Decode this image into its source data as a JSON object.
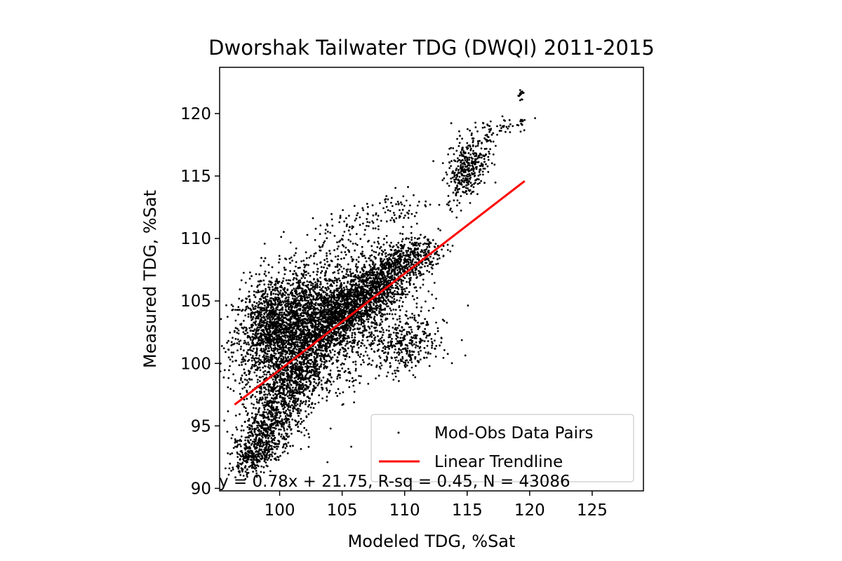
{
  "chart_data": {
    "type": "scatter",
    "title": "Dworshak Tailwater TDG (DWQI) 2011-2015",
    "xlabel": "Modeled TDG, %Sat",
    "ylabel": "Measured TDG, %Sat",
    "xlim": [
      95.2,
      129.1
    ],
    "ylim": [
      89.8,
      123.7
    ],
    "xticks": [
      100,
      105,
      110,
      115,
      120,
      125
    ],
    "yticks": [
      90,
      95,
      100,
      105,
      110,
      115,
      120
    ],
    "grid": false,
    "legend_position": "lower-right",
    "series": [
      {
        "name": "Mod-Obs Data Pairs",
        "kind": "scatter",
        "color": "#000000",
        "clusters": [
          {
            "cx": 99.5,
            "cy": 103.0,
            "sx": 1.6,
            "sy": 2.2,
            "rho": 0.3,
            "n": 1400
          },
          {
            "cx": 102.5,
            "cy": 103.5,
            "sx": 2.0,
            "sy": 2.0,
            "rho": 0.4,
            "n": 1200
          },
          {
            "cx": 101.0,
            "cy": 98.5,
            "sx": 1.6,
            "sy": 2.0,
            "rho": 0.6,
            "n": 900
          },
          {
            "cx": 99.0,
            "cy": 94.5,
            "sx": 1.3,
            "sy": 1.4,
            "rho": 0.6,
            "n": 500
          },
          {
            "cx": 97.8,
            "cy": 92.3,
            "sx": 0.9,
            "sy": 0.6,
            "rho": 0.5,
            "n": 200
          },
          {
            "cx": 105.5,
            "cy": 104.0,
            "sx": 2.0,
            "sy": 1.8,
            "rho": 0.6,
            "n": 1000
          },
          {
            "cx": 107.5,
            "cy": 106.0,
            "sx": 1.8,
            "sy": 1.3,
            "rho": 0.5,
            "n": 800
          },
          {
            "cx": 110.0,
            "cy": 108.5,
            "sx": 1.4,
            "sy": 0.8,
            "rho": 0.3,
            "n": 400
          },
          {
            "cx": 110.0,
            "cy": 101.5,
            "sx": 1.6,
            "sy": 1.2,
            "rho": 0.2,
            "n": 350
          },
          {
            "cx": 104.0,
            "cy": 109.0,
            "sx": 1.5,
            "sy": 1.5,
            "rho": 0.3,
            "n": 120
          },
          {
            "cx": 108.5,
            "cy": 112.0,
            "sx": 1.8,
            "sy": 1.0,
            "rho": 0.5,
            "n": 100
          },
          {
            "cx": 115.0,
            "cy": 115.5,
            "sx": 0.8,
            "sy": 1.2,
            "rho": 0.4,
            "n": 350
          },
          {
            "cx": 116.5,
            "cy": 118.3,
            "sx": 1.4,
            "sy": 0.8,
            "rho": 0.7,
            "n": 80
          },
          {
            "cx": 119.3,
            "cy": 121.5,
            "sx": 0.12,
            "sy": 0.35,
            "rho": 0.0,
            "n": 15
          },
          {
            "cx": 119.3,
            "cy": 119.3,
            "sx": 0.12,
            "sy": 0.25,
            "rho": 0.0,
            "n": 12
          },
          {
            "cx": 103.5,
            "cy": 100.5,
            "sx": 3.5,
            "sy": 3.5,
            "rho": 0.6,
            "n": 400
          }
        ]
      },
      {
        "name": "Linear Trendline",
        "kind": "line",
        "color": "#ff0000",
        "x": [
          96.4,
          119.6
        ],
        "y": [
          96.7,
          114.6
        ]
      }
    ],
    "annotation": "y = 0.78x + 21.75, R-sq = 0.45, N = 43086"
  }
}
